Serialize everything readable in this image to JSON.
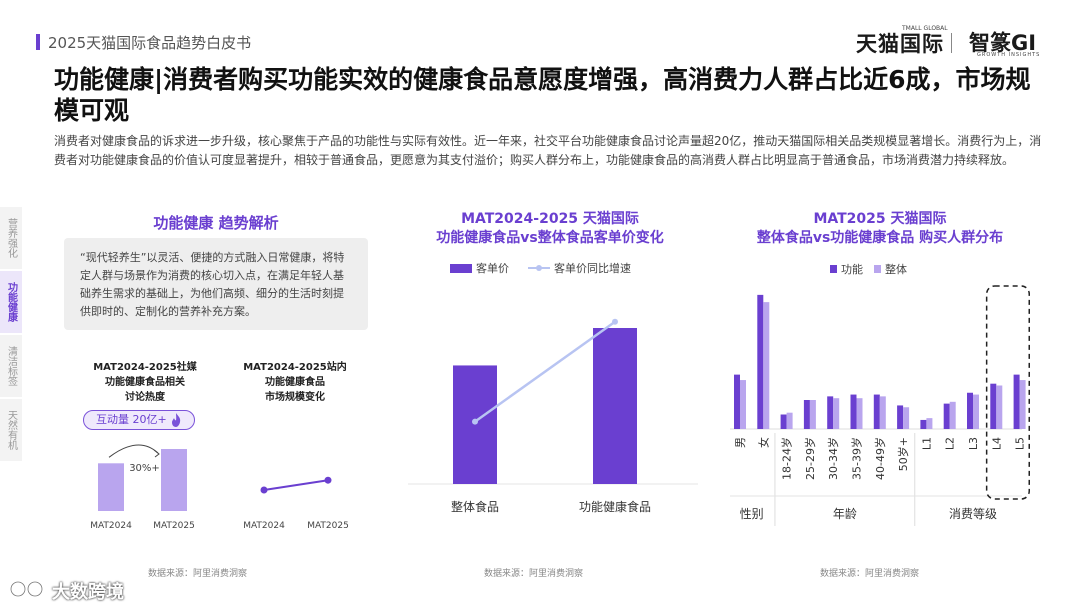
{
  "header": {
    "report_title": "2025天猫国际食品趋势白皮书",
    "brand_tmall": "天猫国际",
    "brand_tmall_sub": "TMALL GLOBAL",
    "brand_gi": "智篆GI",
    "brand_gi_sub": "GROWTH INSIGHTS"
  },
  "headline": "功能健康|消费者购买功能实效的健康食品意愿度增强，高消费力人群占比近6成，市场规模可观",
  "intro": "消费者对健康食品的诉求进一步升级，核心聚焦于产品的功能性与实际有效性。近一年来，社交平台功能健康食品讨论声量超20亿，推动天猫国际相关品类规模显著增长。消费行为上，消费者对功能健康食品的价值认可度显著提升，相较于普通食品，更愿意为其支付溢价；购买人群分布上，功能健康食品的高消费人群占比明显高于普通食品，市场消费潜力持续释放。",
  "side_nav": [
    {
      "label": "营养强化",
      "active": false
    },
    {
      "label": "功能健康",
      "active": true
    },
    {
      "label": "清洁标签",
      "active": false
    },
    {
      "label": "天然有机",
      "active": false
    }
  ],
  "left_panel": {
    "title": "功能健康 趋势解析",
    "quote": "“现代轻养生”以灵活、便捷的方式融入日常健康，将特定人群与场景作为消费的核心切入点，在满足年轻人基础养生需求的基础上，为他们高频、细分的生活时刻提供即时的、定制化的营养补充方案。",
    "mini1_title_l1": "MAT2024-2025社媒",
    "mini1_title_l2": "功能健康食品相关",
    "mini1_title_l3": "讨论热度",
    "badge": "互动量 20亿+",
    "growth_label": "30%+",
    "mini2_title_l1": "MAT2024-2025站内",
    "mini2_title_l2": "功能健康食品",
    "mini2_title_l3": "市场规模变化",
    "data_source": "数据来源：阿里消费洞察"
  },
  "middle_panel": {
    "title_l1": "MAT2024-2025 天猫国际",
    "title_l2": "功能健康食品vs整体食品客单价变化",
    "legend_bar": "客单价",
    "legend_line": "客单价同比增速",
    "data_source": "数据来源：阿里消费洞察"
  },
  "right_panel": {
    "title_l1": "MAT2025 天猫国际",
    "title_l2": "整体食品vs功能健康食品 购买人群分布",
    "legend_func": "功能",
    "legend_total": "整体",
    "data_source": "数据来源：阿里消费洞察"
  },
  "colors": {
    "accent": "#6a3fd0",
    "bar_dark": "#6a3fd0",
    "bar_light": "#b9a5ee",
    "line": "#b8c4f2",
    "grey_bar": "#c9c9dd"
  },
  "footer": {
    "logo_text": "大数跨境"
  },
  "chart_data": [
    {
      "type": "bar",
      "id": "social-heat",
      "categories": [
        "MAT2024",
        "MAT2025"
      ],
      "values": [
        1.0,
        1.3
      ],
      "annotation": "30%+"
    },
    {
      "type": "line",
      "id": "market-size",
      "categories": [
        "MAT2024",
        "MAT2025"
      ],
      "values": [
        1.0,
        1.35
      ]
    },
    {
      "type": "bar",
      "id": "unit-price",
      "categories": [
        "整体食品",
        "功能健康食品"
      ],
      "series": [
        {
          "name": "客单价",
          "values": [
            57,
            75
          ],
          "kind": "bar"
        },
        {
          "name": "客单价同比增速",
          "values": [
            30,
            78
          ],
          "kind": "line"
        }
      ],
      "ylim": [
        0,
        100
      ]
    },
    {
      "type": "bar",
      "id": "buyer-distribution",
      "categories": [
        "男",
        "女",
        "18-24岁",
        "25-29岁",
        "30-34岁",
        "35-39岁",
        "40-49岁",
        "50岁+",
        "L1",
        "L2",
        "L3",
        "L4",
        "L5"
      ],
      "groups": [
        {
          "label": "性别",
          "from": 0,
          "to": 1
        },
        {
          "label": "年龄",
          "from": 2,
          "to": 7
        },
        {
          "label": "消费等级",
          "from": 8,
          "to": 12
        }
      ],
      "series": [
        {
          "name": "功能",
          "values": [
            30,
            74,
            8,
            16,
            18,
            19,
            19,
            13,
            5,
            14,
            20,
            25,
            30
          ]
        },
        {
          "name": "整体",
          "values": [
            27,
            70,
            9,
            16,
            17,
            17,
            18,
            12,
            6,
            15,
            19,
            24,
            27
          ]
        }
      ],
      "highlight_from": 11,
      "highlight_to": 12,
      "ylim": [
        0,
        80
      ]
    }
  ]
}
